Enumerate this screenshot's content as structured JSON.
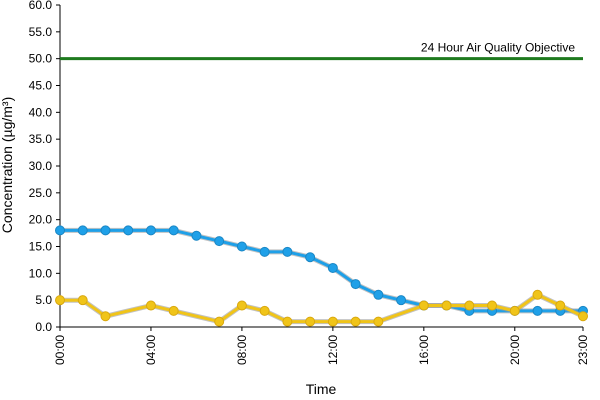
{
  "chart_data": {
    "type": "line",
    "xlabel": "Time",
    "ylabel": "Concentration (µg/m³)",
    "ylim": [
      0,
      60
    ],
    "y_ticks": [
      "0.0",
      "5.0",
      "10.0",
      "15.0",
      "20.0",
      "25.0",
      "30.0",
      "35.0",
      "40.0",
      "45.0",
      "50.0",
      "55.0",
      "60.0"
    ],
    "x_tick_labels": [
      "00:00",
      "04:00",
      "08:00",
      "12:00",
      "16:00",
      "20:00",
      "23:00"
    ],
    "x_tick_hours": [
      0,
      4,
      8,
      12,
      16,
      20,
      23
    ],
    "x": [
      0,
      1,
      2,
      3,
      4,
      5,
      6,
      7,
      8,
      9,
      10,
      11,
      12,
      13,
      14,
      15,
      16,
      17,
      18,
      19,
      20,
      21,
      22,
      23
    ],
    "grid": false,
    "legend": "none",
    "series": [
      {
        "color": "#1fa0e8",
        "values": [
          18,
          18,
          18,
          18,
          18,
          18,
          17,
          16,
          15,
          14,
          14,
          13,
          11,
          8,
          6,
          5,
          4,
          4,
          3,
          3,
          3,
          3,
          3,
          3
        ]
      },
      {
        "color": "#f0c419",
        "values": [
          5,
          5,
          2,
          null,
          4,
          3,
          null,
          1,
          4,
          3,
          1,
          1,
          1,
          1,
          1,
          null,
          4,
          4,
          4,
          4,
          3,
          6,
          4,
          2
        ]
      }
    ],
    "reference_line": {
      "value": 50,
      "label": "24 Hour Air Quality Objective",
      "color": "#1e7a1e"
    }
  }
}
